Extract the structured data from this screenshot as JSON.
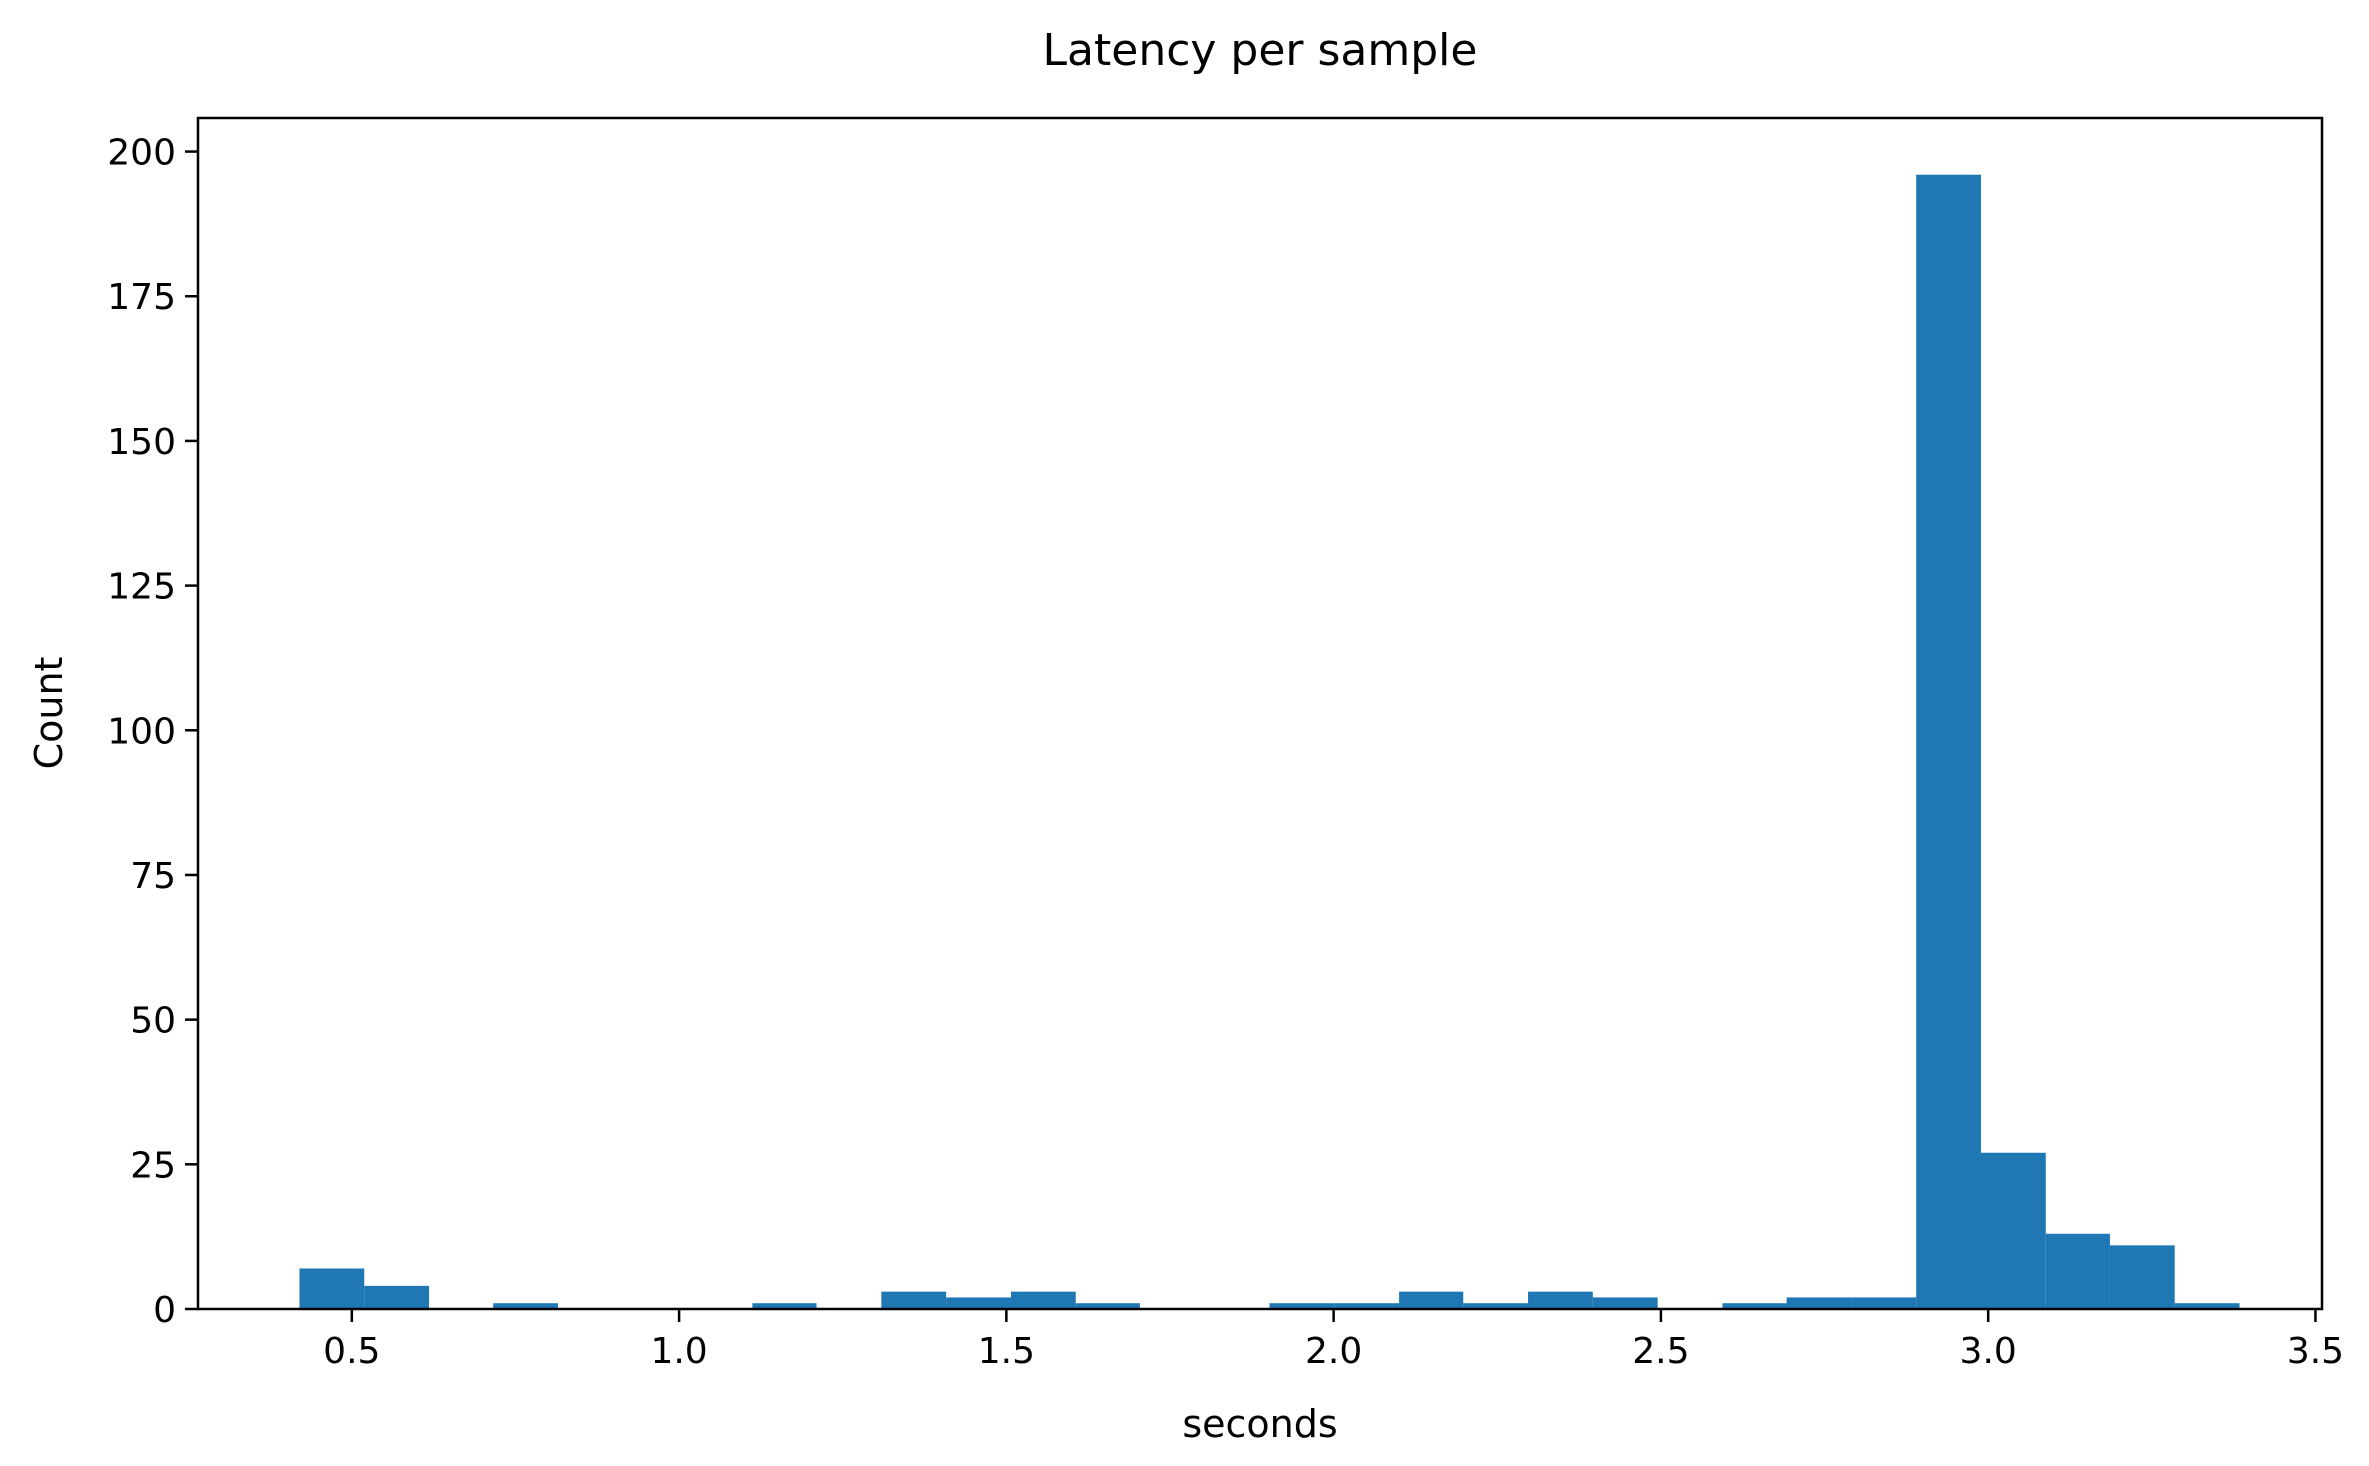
{
  "chart_data": {
    "type": "bar",
    "title": "Latency per sample",
    "xlabel": "seconds",
    "ylabel": "Count",
    "xlim": [
      0.265,
      3.51
    ],
    "ylim": [
      0,
      205.8
    ],
    "xticks": [
      0.5,
      1.0,
      1.5,
      2.0,
      2.5,
      3.0,
      3.5
    ],
    "xtick_labels": [
      "0.5",
      "1.0",
      "1.5",
      "2.0",
      "2.5",
      "3.0",
      "3.5"
    ],
    "yticks": [
      0,
      25,
      50,
      75,
      100,
      125,
      150,
      175,
      200
    ],
    "ytick_labels": [
      "0",
      "25",
      "50",
      "75",
      "100",
      "125",
      "150",
      "175",
      "200"
    ],
    "grid": false,
    "color": "#1f77b4",
    "bin_edges": [
      0.42,
      0.519,
      0.618,
      0.716,
      0.815,
      0.914,
      1.013,
      1.112,
      1.21,
      1.309,
      1.408,
      1.507,
      1.606,
      1.704,
      1.803,
      1.902,
      2.001,
      2.1,
      2.198,
      2.297,
      2.396,
      2.495,
      2.594,
      2.692,
      2.791,
      2.89,
      2.989,
      3.088,
      3.186,
      3.285,
      3.384
    ],
    "counts": [
      7,
      4,
      0,
      1,
      0,
      0,
      0,
      1,
      0,
      3,
      2,
      3,
      1,
      0,
      0,
      1,
      1,
      3,
      1,
      3,
      2,
      0,
      1,
      2,
      2,
      196,
      27,
      13,
      11,
      1
    ]
  }
}
